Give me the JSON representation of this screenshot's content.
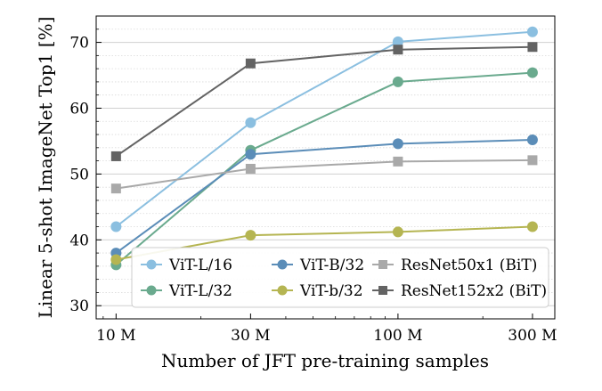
{
  "chart_data": {
    "type": "line",
    "title": "",
    "xlabel": "Number of JFT pre-training samples",
    "ylabel": "Linear 5-shot ImageNet Top1 [%]",
    "x_scale": "log",
    "x": [
      10,
      30,
      100,
      300
    ],
    "x_tick_labels": [
      "10 M",
      "30 M",
      "100 M",
      "300 M"
    ],
    "xlim": [
      8.5,
      360
    ],
    "ylim": [
      28,
      74
    ],
    "y_ticks": [
      30,
      40,
      50,
      60,
      70
    ],
    "y_tick_labels": [
      "30",
      "40",
      "50",
      "60",
      "70"
    ],
    "grid": "horizontal",
    "legend_position": "lower-right",
    "series": [
      {
        "name": "ViT-L/16",
        "color": "#8bbfe0",
        "marker": "circle",
        "values": [
          42.0,
          57.8,
          70.1,
          71.6
        ]
      },
      {
        "name": "ViT-L/32",
        "color": "#6aaa8e",
        "marker": "circle",
        "values": [
          36.2,
          53.6,
          64.0,
          65.4
        ]
      },
      {
        "name": "ViT-B/32",
        "color": "#5b8db8",
        "marker": "circle",
        "values": [
          38.0,
          53.0,
          54.6,
          55.2
        ]
      },
      {
        "name": "ViT-b/32",
        "color": "#b5b552",
        "marker": "circle",
        "values": [
          37.0,
          40.7,
          41.2,
          42.0
        ]
      },
      {
        "name": "ResNet50x1 (BiT)",
        "color": "#a9a9a9",
        "marker": "square",
        "values": [
          47.8,
          50.8,
          51.9,
          52.1
        ]
      },
      {
        "name": "ResNet152x2 (BiT)",
        "color": "#636363",
        "marker": "square",
        "values": [
          52.7,
          66.8,
          68.9,
          69.3
        ]
      }
    ]
  }
}
